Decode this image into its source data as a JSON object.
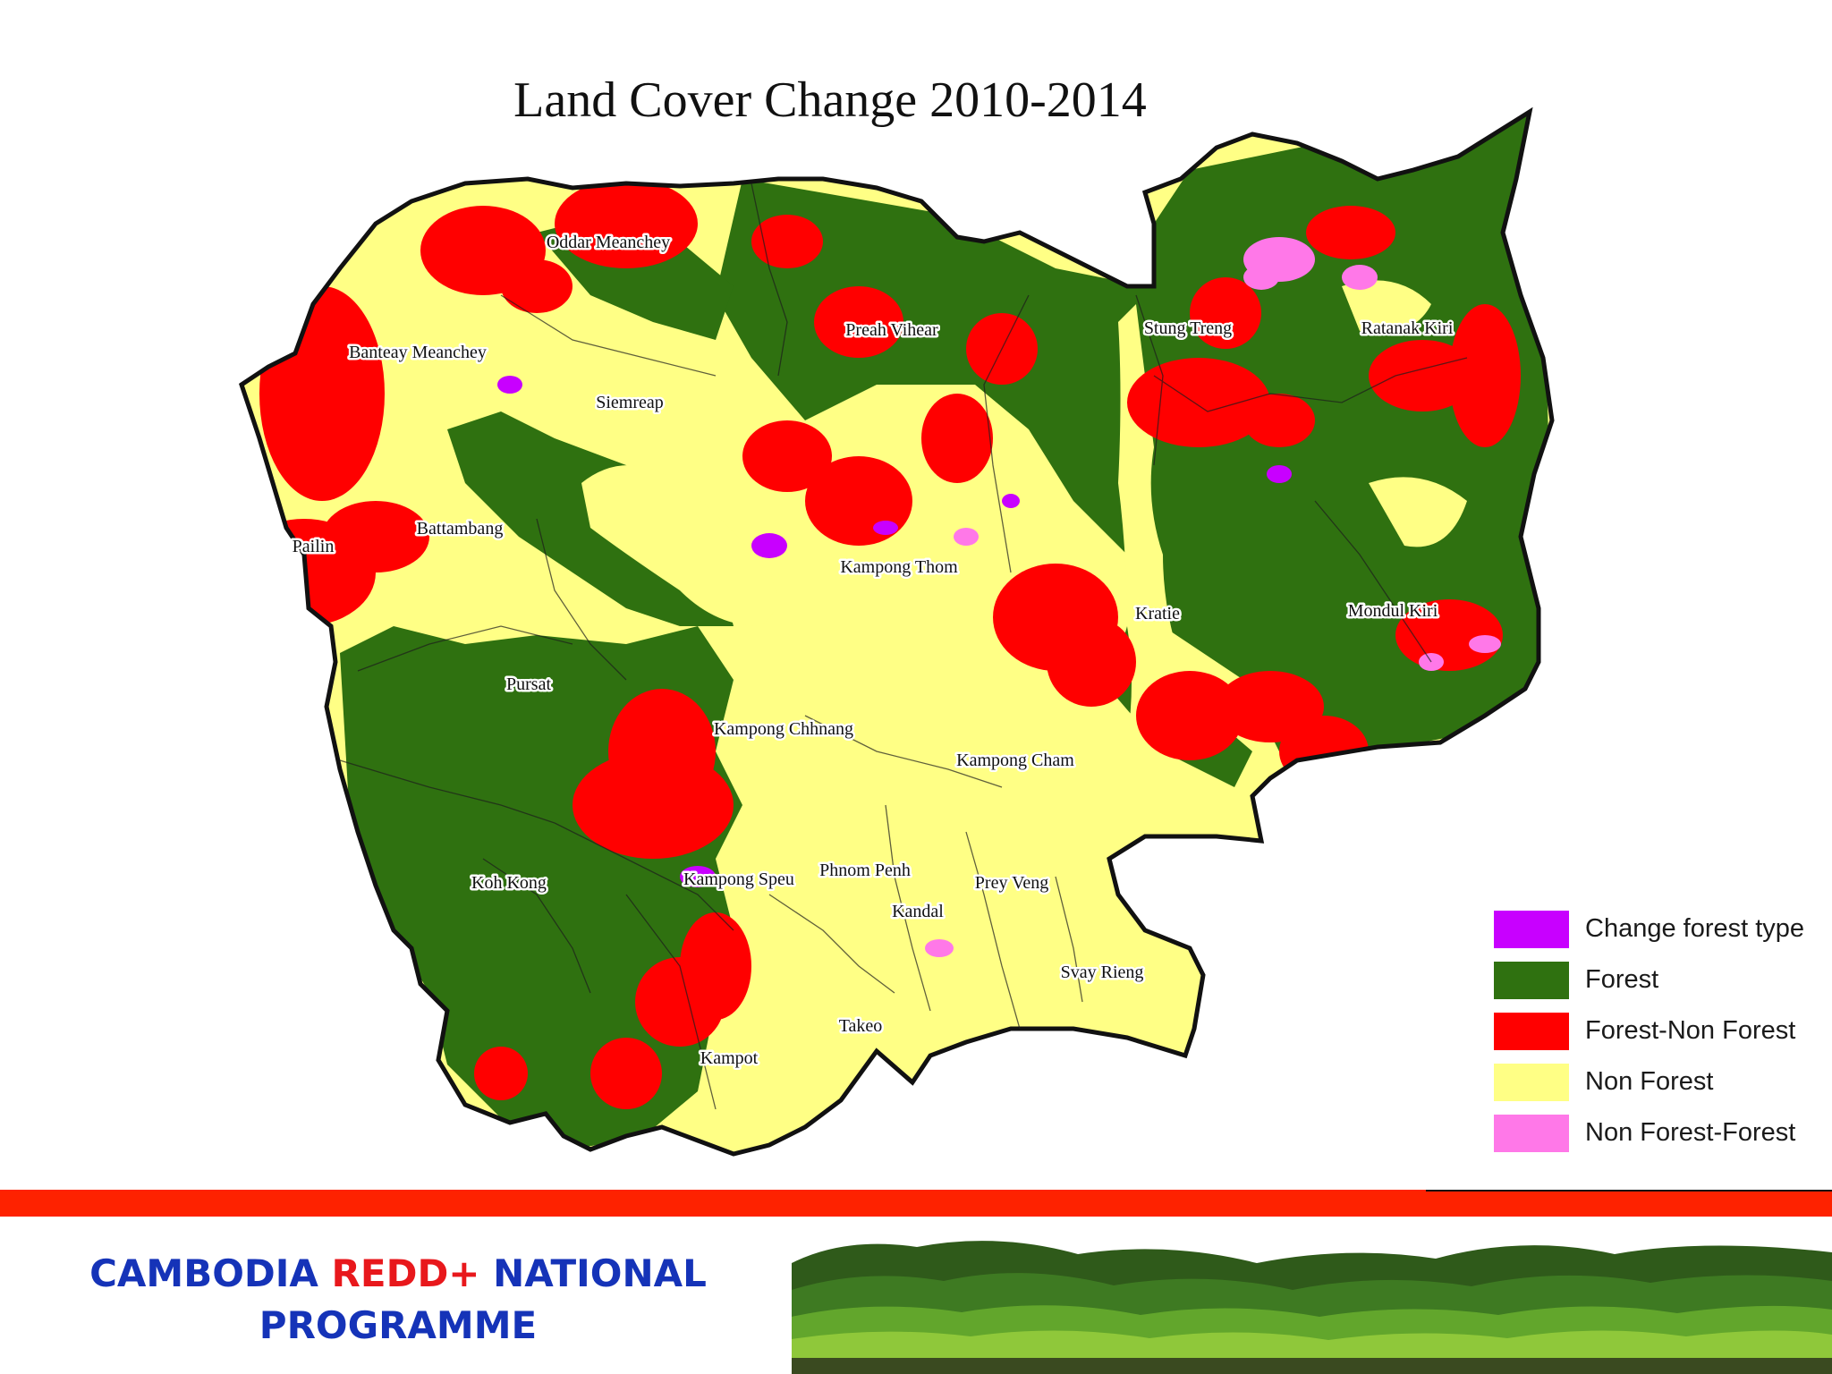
{
  "title": "Land Cover Change 2010-2014",
  "provinces": [
    {
      "id": "oddar-meanchey",
      "name": "Oddar Meanchey"
    },
    {
      "id": "banteay-meanchey",
      "name": "Banteay Meanchey"
    },
    {
      "id": "siemreap",
      "name": "Siemreap"
    },
    {
      "id": "preah-vihear",
      "name": "Preah Vihear"
    },
    {
      "id": "stung-treng",
      "name": "Stung Treng"
    },
    {
      "id": "ratanak-kiri",
      "name": "Ratanak Kiri"
    },
    {
      "id": "battambang",
      "name": "Battambang"
    },
    {
      "id": "pailin",
      "name": "Pailin"
    },
    {
      "id": "kampong-thom",
      "name": "Kampong Thom"
    },
    {
      "id": "kratie",
      "name": "Kratie"
    },
    {
      "id": "mondul-kiri",
      "name": "Mondul Kiri"
    },
    {
      "id": "pursat",
      "name": "Pursat"
    },
    {
      "id": "kampong-chhnang",
      "name": "Kampong Chhnang"
    },
    {
      "id": "kampong-cham",
      "name": "Kampong Cham"
    },
    {
      "id": "koh-kong",
      "name": "Koh Kong"
    },
    {
      "id": "kampong-speu",
      "name": "Kampong Speu"
    },
    {
      "id": "phnom-penh",
      "name": "Phnom Penh"
    },
    {
      "id": "prey-veng",
      "name": "Prey Veng"
    },
    {
      "id": "kandal",
      "name": "Kandal"
    },
    {
      "id": "svay-rieng",
      "name": "Svay Rieng"
    },
    {
      "id": "takeo",
      "name": "Takeo"
    },
    {
      "id": "kampot",
      "name": "Kampot"
    }
  ],
  "legend": [
    {
      "label": "Change forest type",
      "color": "#c800ff"
    },
    {
      "label": "Forest",
      "color": "#2f7110"
    },
    {
      "label": "Forest-Non Forest",
      "color": "#ff0000"
    },
    {
      "label": "Non Forest",
      "color": "#ffff85"
    },
    {
      "label": "Non Forest-Forest",
      "color": "#ff78e8"
    }
  ],
  "footer": {
    "line1_part1": "CAMBODIA ",
    "line1_part2": "REDD+",
    "line1_part3": " NATIONAL",
    "line2": "PROGRAMME"
  }
}
